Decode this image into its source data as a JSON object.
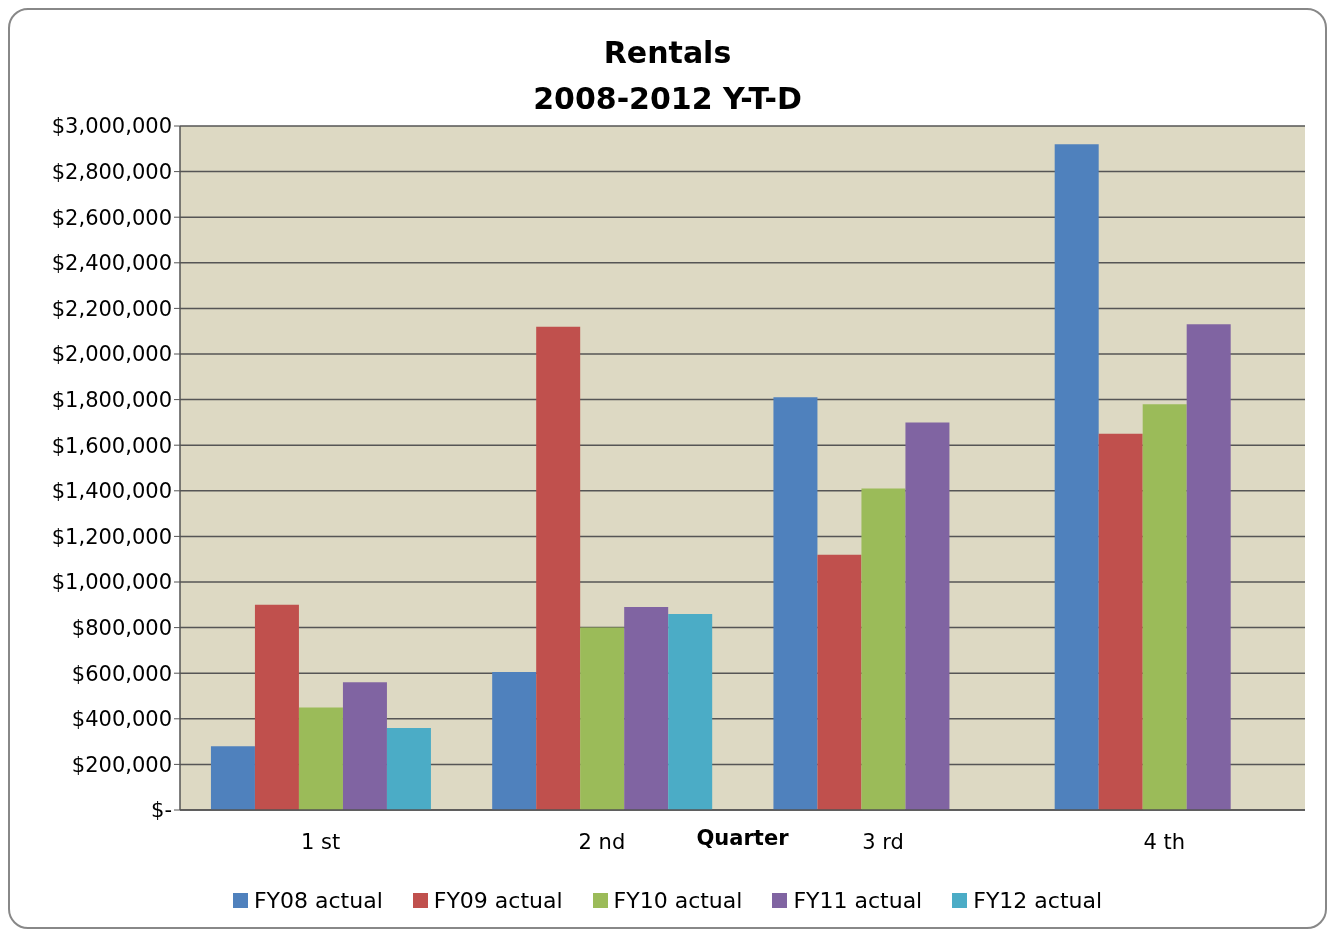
{
  "chart_data": {
    "type": "bar",
    "title": "Rentals\n2008-2012 Y-T-D",
    "xlabel": "Quarter",
    "categories": [
      "1 st",
      "2 nd",
      "3 rd",
      "4 th"
    ],
    "series": [
      {
        "name": "FY08 actual",
        "color": "#4f81bd",
        "values": [
          280000,
          605000,
          1810000,
          2920000
        ]
      },
      {
        "name": "FY09 actual",
        "color": "#c0504d",
        "values": [
          900000,
          2120000,
          1120000,
          1650000
        ]
      },
      {
        "name": "FY10 actual",
        "color": "#9bbb59",
        "values": [
          450000,
          800000,
          1410000,
          1780000
        ]
      },
      {
        "name": "FY11 actual",
        "color": "#8064a2",
        "values": [
          560000,
          890000,
          1700000,
          2130000
        ]
      },
      {
        "name": "FY12 actual",
        "color": "#4bacc6",
        "values": [
          360000,
          860000,
          null,
          null
        ]
      }
    ],
    "ylim": [
      0,
      3000000
    ],
    "yticks": [
      {
        "value": 0,
        "label": "$-"
      },
      {
        "value": 200000,
        "label": "$200,000"
      },
      {
        "value": 400000,
        "label": "$400,000"
      },
      {
        "value": 600000,
        "label": "$600,000"
      },
      {
        "value": 800000,
        "label": "$800,000"
      },
      {
        "value": 1000000,
        "label": "$1,000,000"
      },
      {
        "value": 1200000,
        "label": "$1,200,000"
      },
      {
        "value": 1400000,
        "label": "$1,400,000"
      },
      {
        "value": 1600000,
        "label": "$1,600,000"
      },
      {
        "value": 1800000,
        "label": "$1,800,000"
      },
      {
        "value": 2000000,
        "label": "$2,000,000"
      },
      {
        "value": 2200000,
        "label": "$2,200,000"
      },
      {
        "value": 2400000,
        "label": "$2,400,000"
      },
      {
        "value": 2600000,
        "label": "$2,600,000"
      },
      {
        "value": 2800000,
        "label": "$2,800,000"
      },
      {
        "value": 3000000,
        "label": "$3,000,000"
      }
    ],
    "grid": "y",
    "legend": "bottom"
  }
}
